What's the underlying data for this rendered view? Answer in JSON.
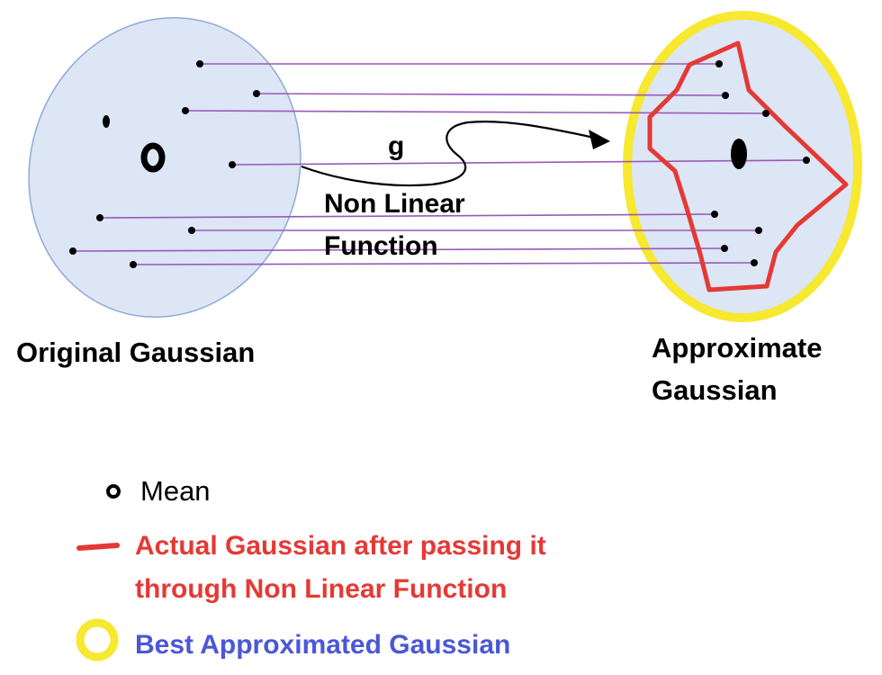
{
  "labels": {
    "original": "Original Gaussian",
    "approx_line1": "Approximate",
    "approx_line2": "Gaussian",
    "function_name": "g",
    "function_line1": "Non Linear",
    "function_line2": "Function"
  },
  "legend": {
    "mean": "Mean",
    "actual_line1": "Actual Gaussian after passing it",
    "actual_line2": "through Non Linear Function",
    "best": "Best Approximated Gaussian"
  },
  "colors": {
    "ellipse_fill": "#dce6f5",
    "ellipse_stroke": "#8faad6",
    "mapping_line": "#9b59b6",
    "actual_red": "#e53935",
    "best_yellow": "#f7e830",
    "best_text": "#4a57d6",
    "point": "#000000"
  }
}
